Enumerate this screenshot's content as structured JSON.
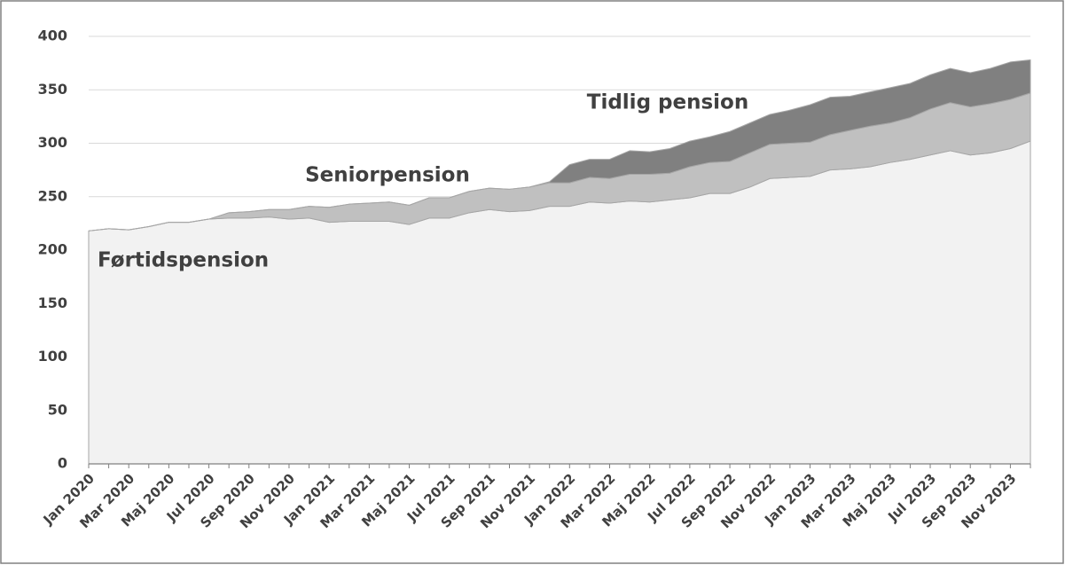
{
  "chart_data": {
    "type": "stacked_area",
    "categories": [
      "Jan 2020",
      null,
      "Mar 2020",
      null,
      "Maj 2020",
      null,
      "Jul 2020",
      null,
      "Sep 2020",
      null,
      "Nov 2020",
      null,
      "Jan 2021",
      null,
      "Mar 2021",
      null,
      "Maj 2021",
      null,
      "Jul 2021",
      null,
      "Sep 2021",
      null,
      "Nov 2021",
      null,
      "Jan 2022",
      null,
      "Mar 2022",
      null,
      "Maj 2022",
      null,
      "Jul 2022",
      null,
      "Sep 2022",
      null,
      "Nov 2022",
      null,
      "Jan 2023",
      null,
      "Mar 2023",
      null,
      "Maj 2023",
      null,
      "Jul 2023",
      null,
      "Sep 2023",
      null,
      "Nov 2023",
      null
    ],
    "series": [
      {
        "name": "Førtidspension",
        "color": "#f2f2f2",
        "values": [
          218,
          220,
          219,
          222,
          226,
          226,
          229,
          230,
          230,
          231,
          229,
          230,
          226,
          227,
          227,
          227,
          224,
          230,
          230,
          235,
          238,
          236,
          237,
          241,
          241,
          245,
          244,
          246,
          245,
          247,
          249,
          253,
          253,
          259,
          267,
          268,
          269,
          275,
          276,
          278,
          282,
          285,
          289,
          293,
          289,
          291,
          295,
          302
        ]
      },
      {
        "name": "Seniorpension",
        "color": "#c0c0c0",
        "values": [
          0,
          0,
          0,
          0,
          0,
          0,
          0,
          5,
          6,
          7,
          9,
          11,
          14,
          16,
          17,
          18,
          18,
          19,
          19,
          20,
          20,
          21,
          22,
          22,
          22,
          23,
          23,
          25,
          26,
          25,
          29,
          29,
          30,
          32,
          32,
          32,
          32,
          33,
          36,
          38,
          37,
          39,
          43,
          45,
          45,
          46,
          46,
          45
        ]
      },
      {
        "name": "Tidlig pension",
        "color": "#808080",
        "values": [
          0,
          0,
          0,
          0,
          0,
          0,
          0,
          0,
          0,
          0,
          0,
          0,
          0,
          0,
          0,
          0,
          0,
          0,
          0,
          0,
          0,
          0,
          0,
          1,
          17,
          17,
          18,
          22,
          21,
          23,
          24,
          24,
          28,
          28,
          28,
          31,
          35,
          35,
          32,
          32,
          33,
          32,
          32,
          32,
          32,
          33,
          35,
          31
        ]
      }
    ],
    "ylim": [
      0,
      400
    ],
    "yticks": [
      0,
      50,
      100,
      150,
      200,
      250,
      300,
      350,
      400
    ],
    "grid": true
  }
}
